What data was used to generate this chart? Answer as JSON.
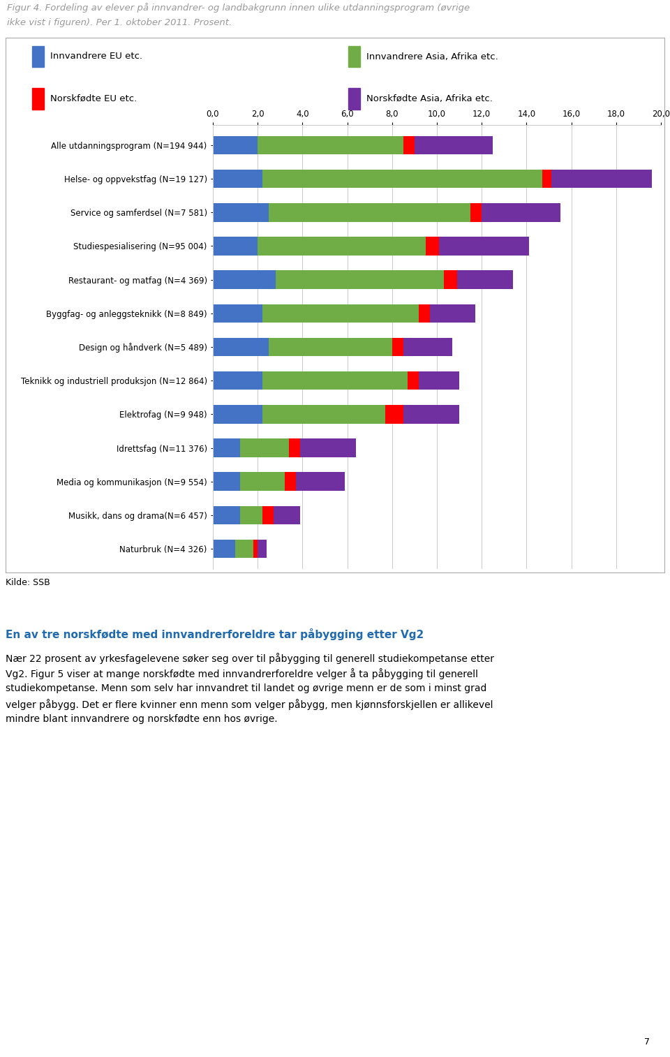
{
  "title_line1": "Figur 4. Fordeling av elever på innvandrer- og landbakgrunn innen ulike utdanningsprogram (øvrige",
  "title_line2": "ikke vist i figuren). Per 1. oktober 2011. Prosent.",
  "source": "Kilde: SSB",
  "categories": [
    "Alle utdanningsprogram (N=194 944)",
    "Helse- og oppvekstfag (N=19 127)",
    "Service og samferdsel (N=7 581)",
    "Studiespesialisering (N=95 004)",
    "Restaurant- og matfag (N=4 369)",
    "Byggfag- og anleggsteknikk (N=8 849)",
    "Design og håndverk (N=5 489)",
    "Teknikk og industriell produksjon (N=12 864)",
    "Elektrofag (N=9 948)",
    "Idrettsfag (N=11 376)",
    "Media og kommunikasjon (N=9 554)",
    "Musikk, dans og drama(N=6 457)",
    "Naturbruk (N=4 326)"
  ],
  "series_order": [
    "Innvandrere EU etc.",
    "Innvandrere Asia, Afrika etc.",
    "Norskfødte EU etc.",
    "Norskfødte Asia, Afrika etc."
  ],
  "series": {
    "Innvandrere EU etc.": {
      "color": "#4472C4",
      "values": [
        2.0,
        2.2,
        2.5,
        2.0,
        2.8,
        2.2,
        2.5,
        2.2,
        2.2,
        1.2,
        1.2,
        1.2,
        1.0
      ]
    },
    "Innvandrere Asia, Afrika etc.": {
      "color": "#70AD47",
      "values": [
        6.5,
        12.5,
        9.0,
        7.5,
        7.5,
        7.0,
        5.5,
        6.5,
        5.5,
        2.2,
        2.0,
        1.0,
        0.8
      ]
    },
    "Norskfødte EU etc.": {
      "color": "#FF0000",
      "values": [
        0.5,
        0.4,
        0.5,
        0.6,
        0.6,
        0.5,
        0.5,
        0.5,
        0.8,
        0.5,
        0.5,
        0.5,
        0.2
      ]
    },
    "Norskfødte Asia, Afrika etc.": {
      "color": "#7030A0",
      "values": [
        3.5,
        4.5,
        3.5,
        4.0,
        2.5,
        2.0,
        2.2,
        1.8,
        2.5,
        2.5,
        2.2,
        1.2,
        0.4
      ]
    }
  },
  "xlim": [
    0,
    20
  ],
  "xticks": [
    0,
    2,
    4,
    6,
    8,
    10,
    12,
    14,
    16,
    18,
    20
  ],
  "xtick_labels": [
    "0,0",
    "2,0",
    "4,0",
    "6,0",
    "8,0",
    "10,0",
    "12,0",
    "14,0",
    "16,0",
    "18,0",
    "20,0"
  ],
  "legend_col1": [
    [
      "Innvandrere EU etc.",
      "#4472C4"
    ],
    [
      "Norskfødte EU etc.",
      "#FF0000"
    ]
  ],
  "legend_col2": [
    [
      "Innvandrere Asia, Afrika etc.",
      "#70AD47"
    ],
    [
      "Norskfødte Asia, Afrika etc.",
      "#7030A0"
    ]
  ],
  "body_text_title": "En av tre norskfødte med innvandrerforeldre tar påbygging etter Vg2",
  "body_text_lines": [
    "Nær 22 prosent av yrkesfagelevene søker seg over til påbygging til generell studiekompetanse etter",
    "Vg2. Figur 5 viser at mange norskfødte med innvandrerforeldre velger å ta påbygging til generell",
    "studiekompetanse. Menn som selv har innvandret til landet og øvrige menn er de som i minst grad",
    "velger påbygg. Det er flere kvinner enn menn som velger påbygg, men kjønnsforskjellen er allikevel",
    "mindre blant innvandrere og norskfødte enn hos øvrige."
  ],
  "page_number": "7",
  "background_color": "#FFFFFF",
  "title_color": "#999999",
  "title_fontsize": 9.5,
  "source_fontsize": 9,
  "body_title_color": "#1F6AB0",
  "body_title_fontsize": 11,
  "body_text_fontsize": 10
}
